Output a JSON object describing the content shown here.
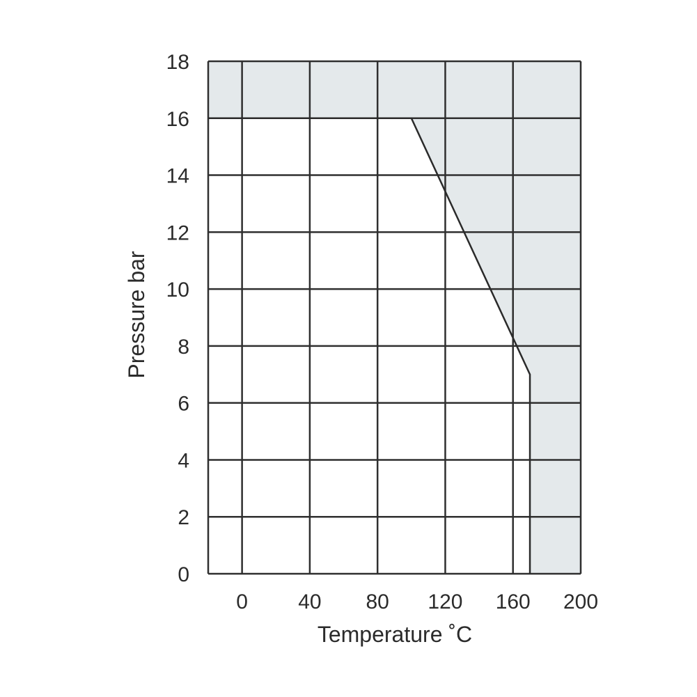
{
  "chart_data": {
    "type": "line",
    "title": "",
    "xlabel": "Temperature ˚C",
    "ylabel": "Pressure bar",
    "xlim": [
      -20,
      200
    ],
    "ylim": [
      0,
      18
    ],
    "x_ticks": [
      0,
      40,
      80,
      120,
      160,
      200
    ],
    "y_ticks": [
      0,
      2,
      4,
      6,
      8,
      10,
      12,
      14,
      16,
      18
    ],
    "x_tick_labels": [
      "0",
      "40",
      "80",
      "120",
      "160",
      "200"
    ],
    "y_tick_labels": [
      "0",
      "2",
      "4",
      "6",
      "8",
      "10",
      "12",
      "14",
      "16",
      "18"
    ],
    "grid": true,
    "series": [
      {
        "x": [
          -20,
          100,
          170,
          170
        ],
        "y": [
          16,
          16,
          7,
          0
        ]
      }
    ],
    "shaded_region": "above/right of the pressure-temperature limit line",
    "colors": {
      "shade": "#e4e9eb",
      "grid": "#2f2f2f",
      "line": "#2a2a2a",
      "text": "#2b2b2b"
    }
  }
}
